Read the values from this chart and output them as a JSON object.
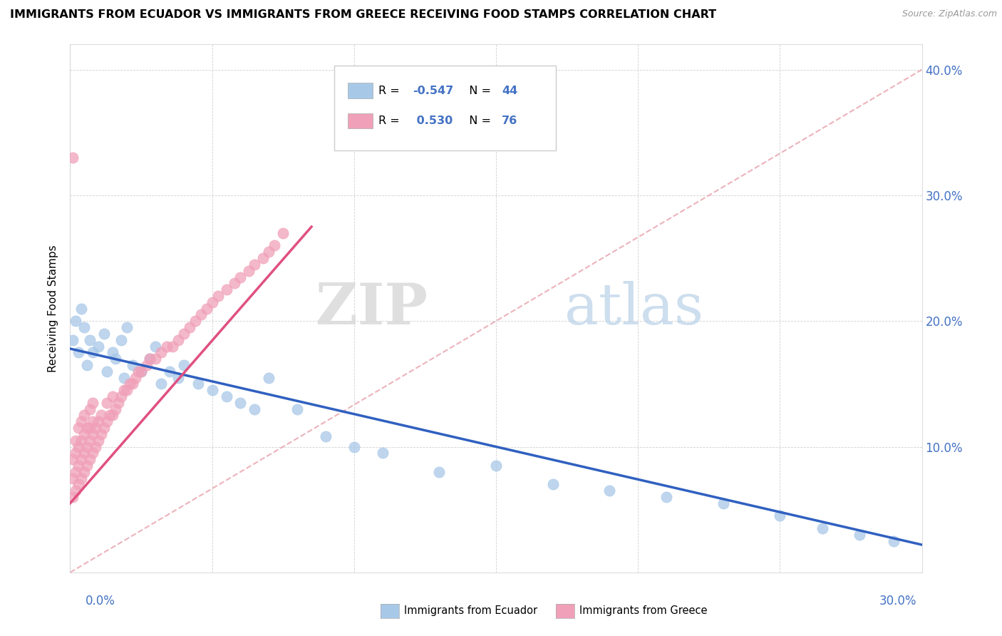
{
  "title": "IMMIGRANTS FROM ECUADOR VS IMMIGRANTS FROM GREECE RECEIVING FOOD STAMPS CORRELATION CHART",
  "source": "Source: ZipAtlas.com",
  "ylabel": "Receiving Food Stamps",
  "xlim": [
    0.0,
    0.3
  ],
  "ylim": [
    0.0,
    0.42
  ],
  "legend_ecuador_r": "-0.547",
  "legend_ecuador_n": "44",
  "legend_greece_r": "0.530",
  "legend_greece_n": "76",
  "color_ecuador": "#a8c8e8",
  "color_greece": "#f0a0b8",
  "color_trendline_ecuador": "#3060c0",
  "color_trendline_greece": "#e05080",
  "color_trendline_dashed": "#e08090",
  "watermark_zip": "ZIP",
  "watermark_atlas": "atlas",
  "ecuador_trendline": [
    0.0,
    0.3,
    0.178,
    0.022
  ],
  "greece_trendline": [
    0.0,
    0.085,
    0.055,
    0.275
  ],
  "dashed_line": [
    0.0,
    0.3,
    0.0,
    0.4
  ],
  "ecuador_scatter_x": [
    0.001,
    0.002,
    0.003,
    0.004,
    0.005,
    0.006,
    0.007,
    0.008,
    0.01,
    0.012,
    0.013,
    0.015,
    0.016,
    0.018,
    0.019,
    0.02,
    0.022,
    0.025,
    0.028,
    0.03,
    0.032,
    0.035,
    0.038,
    0.04,
    0.045,
    0.05,
    0.055,
    0.06,
    0.065,
    0.07,
    0.08,
    0.09,
    0.1,
    0.11,
    0.13,
    0.15,
    0.17,
    0.19,
    0.21,
    0.23,
    0.25,
    0.265,
    0.278,
    0.29
  ],
  "ecuador_scatter_y": [
    0.185,
    0.2,
    0.175,
    0.21,
    0.195,
    0.165,
    0.185,
    0.175,
    0.18,
    0.19,
    0.16,
    0.175,
    0.17,
    0.185,
    0.155,
    0.195,
    0.165,
    0.16,
    0.17,
    0.18,
    0.15,
    0.16,
    0.155,
    0.165,
    0.15,
    0.145,
    0.14,
    0.135,
    0.13,
    0.155,
    0.13,
    0.108,
    0.1,
    0.095,
    0.08,
    0.085,
    0.07,
    0.065,
    0.06,
    0.055,
    0.045,
    0.035,
    0.03,
    0.025
  ],
  "greece_scatter_x": [
    0.001,
    0.001,
    0.001,
    0.002,
    0.002,
    0.002,
    0.002,
    0.003,
    0.003,
    0.003,
    0.003,
    0.004,
    0.004,
    0.004,
    0.004,
    0.005,
    0.005,
    0.005,
    0.005,
    0.006,
    0.006,
    0.006,
    0.007,
    0.007,
    0.007,
    0.007,
    0.008,
    0.008,
    0.008,
    0.008,
    0.009,
    0.009,
    0.01,
    0.01,
    0.011,
    0.011,
    0.012,
    0.013,
    0.013,
    0.014,
    0.015,
    0.015,
    0.016,
    0.017,
    0.018,
    0.019,
    0.02,
    0.021,
    0.022,
    0.023,
    0.024,
    0.025,
    0.027,
    0.028,
    0.03,
    0.032,
    0.034,
    0.036,
    0.038,
    0.04,
    0.042,
    0.044,
    0.046,
    0.048,
    0.05,
    0.052,
    0.055,
    0.058,
    0.06,
    0.063,
    0.065,
    0.068,
    0.07,
    0.072,
    0.075,
    0.001
  ],
  "greece_scatter_y": [
    0.06,
    0.075,
    0.09,
    0.065,
    0.08,
    0.095,
    0.105,
    0.07,
    0.085,
    0.1,
    0.115,
    0.075,
    0.09,
    0.105,
    0.12,
    0.08,
    0.095,
    0.11,
    0.125,
    0.085,
    0.1,
    0.115,
    0.09,
    0.105,
    0.115,
    0.13,
    0.095,
    0.11,
    0.12,
    0.135,
    0.1,
    0.115,
    0.105,
    0.12,
    0.11,
    0.125,
    0.115,
    0.12,
    0.135,
    0.125,
    0.125,
    0.14,
    0.13,
    0.135,
    0.14,
    0.145,
    0.145,
    0.15,
    0.15,
    0.155,
    0.16,
    0.16,
    0.165,
    0.17,
    0.17,
    0.175,
    0.18,
    0.18,
    0.185,
    0.19,
    0.195,
    0.2,
    0.205,
    0.21,
    0.215,
    0.22,
    0.225,
    0.23,
    0.235,
    0.24,
    0.245,
    0.25,
    0.255,
    0.26,
    0.27,
    0.33
  ]
}
